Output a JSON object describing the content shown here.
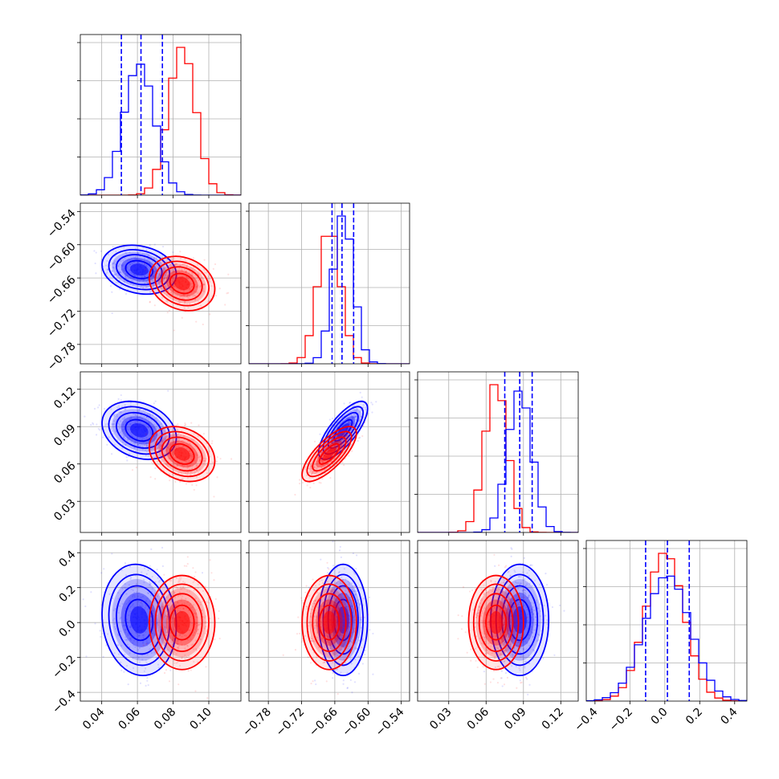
{
  "chart_data": {
    "type": "corner",
    "title": "",
    "params": [
      {
        "ticks": [
          "0.04",
          "0.06",
          "0.08",
          "0.10"
        ],
        "tick_values": [
          0.04,
          0.06,
          0.08,
          0.1
        ],
        "range": [
          0.028,
          0.118
        ]
      },
      {
        "ticks": [
          "−0.78",
          "−0.72",
          "−0.66",
          "−0.60",
          "−0.54"
        ],
        "tick_values": [
          -0.78,
          -0.72,
          -0.66,
          -0.6,
          -0.54
        ],
        "range": [
          -0.815,
          -0.525
        ]
      },
      {
        "ticks": [
          "0.03",
          "0.06",
          "0.09",
          "0.12"
        ],
        "tick_values": [
          0.03,
          0.06,
          0.09,
          0.12
        ],
        "range": [
          0.005,
          0.134
        ]
      },
      {
        "ticks": [
          "−0.4",
          "−0.2",
          "0.0",
          "0.2",
          "0.4"
        ],
        "tick_values": [
          -0.4,
          -0.2,
          0.0,
          0.2,
          0.4
        ],
        "range": [
          -0.45,
          0.47
        ]
      }
    ],
    "series": [
      {
        "color": "#0000ff",
        "means": [
          0.061,
          -0.645,
          0.087,
          0.015
        ],
        "stds": [
          0.0085,
          0.018,
          0.0095,
          0.13
        ],
        "correlations": {
          "0-1": -0.2,
          "0-2": -0.25,
          "1-2": 0.75,
          "0-3": -0.1,
          "1-3": 0.0,
          "2-3": 0.0
        },
        "quantiles": [
          [
            0.051,
            0.062,
            0.074
          ],
          [
            -0.665,
            -0.647,
            -0.626
          ],
          [
            0.075,
            0.087,
            0.097
          ],
          [
            -0.11,
            0.015,
            0.14
          ]
        ]
      },
      {
        "color": "#ff0000",
        "means": [
          0.085,
          -0.67,
          0.068,
          0.0
        ],
        "stds": [
          0.0075,
          0.02,
          0.009,
          0.11
        ],
        "correlations": {
          "0-1": -0.2,
          "0-2": -0.25,
          "1-2": 0.75,
          "0-3": 0.0,
          "1-3": 0.0,
          "2-3": 0.0
        },
        "quantiles": []
      }
    ],
    "grid": true,
    "legend": "none"
  }
}
